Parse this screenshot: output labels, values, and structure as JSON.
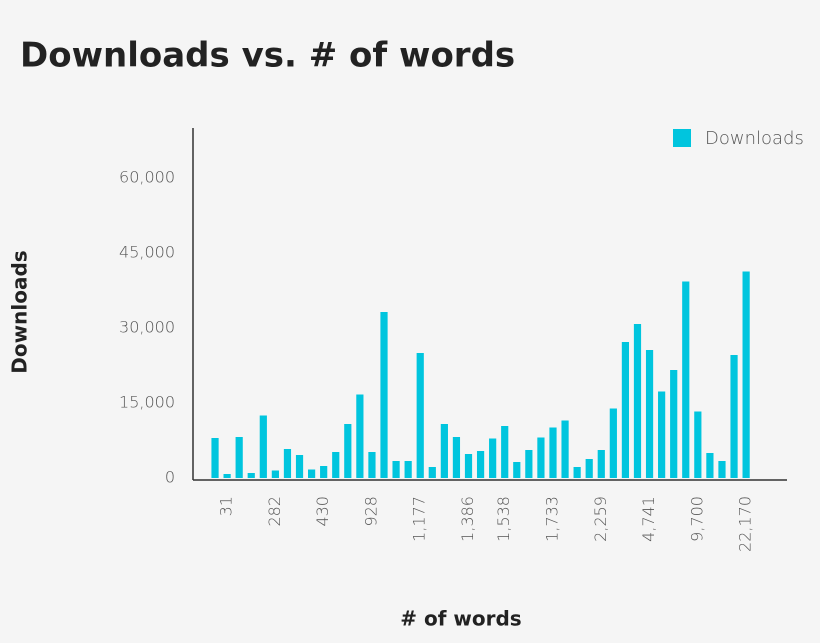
{
  "chart_data": {
    "type": "bar",
    "title": "Downloads vs. # of words",
    "x_label": "# of words",
    "y_label": "Downloads",
    "categories": [
      null,
      "31",
      null,
      null,
      null,
      "282",
      null,
      null,
      null,
      "430",
      null,
      null,
      null,
      "928",
      null,
      null,
      null,
      "1,177",
      null,
      null,
      null,
      "1,386",
      null,
      null,
      "1,538",
      null,
      null,
      null,
      "1,733",
      null,
      null,
      null,
      "2,259",
      null,
      null,
      null,
      "4,741",
      null,
      null,
      null,
      "9,700",
      null,
      null,
      null,
      "22,170"
    ],
    "series": [
      {
        "name": "Downloads",
        "color": "#00c5de",
        "values": [
          8000,
          800,
          8200,
          1000,
          12500,
          1500,
          5800,
          4600,
          1700,
          2400,
          5200,
          10800,
          16700,
          5200,
          33200,
          3400,
          3400,
          25000,
          2200,
          10800,
          8200,
          4800,
          5400,
          7900,
          10400,
          3200,
          5600,
          8100,
          10100,
          11500,
          2200,
          3800,
          5600,
          13900,
          27200,
          30800,
          25600,
          17300,
          21600,
          39300,
          13300,
          5000,
          3400,
          24600,
          41300
        ]
      }
    ],
    "ylim": [
      0,
      70000
    ],
    "yticks": [
      0,
      {
        "value": 15000,
        "label": "15,000"
      },
      {
        "value": 30000,
        "label": "30,000"
      },
      {
        "value": 45000,
        "label": "45,000"
      },
      {
        "value": 60000,
        "label": "60,000"
      }
    ],
    "grid": false,
    "legend": "top-right"
  }
}
